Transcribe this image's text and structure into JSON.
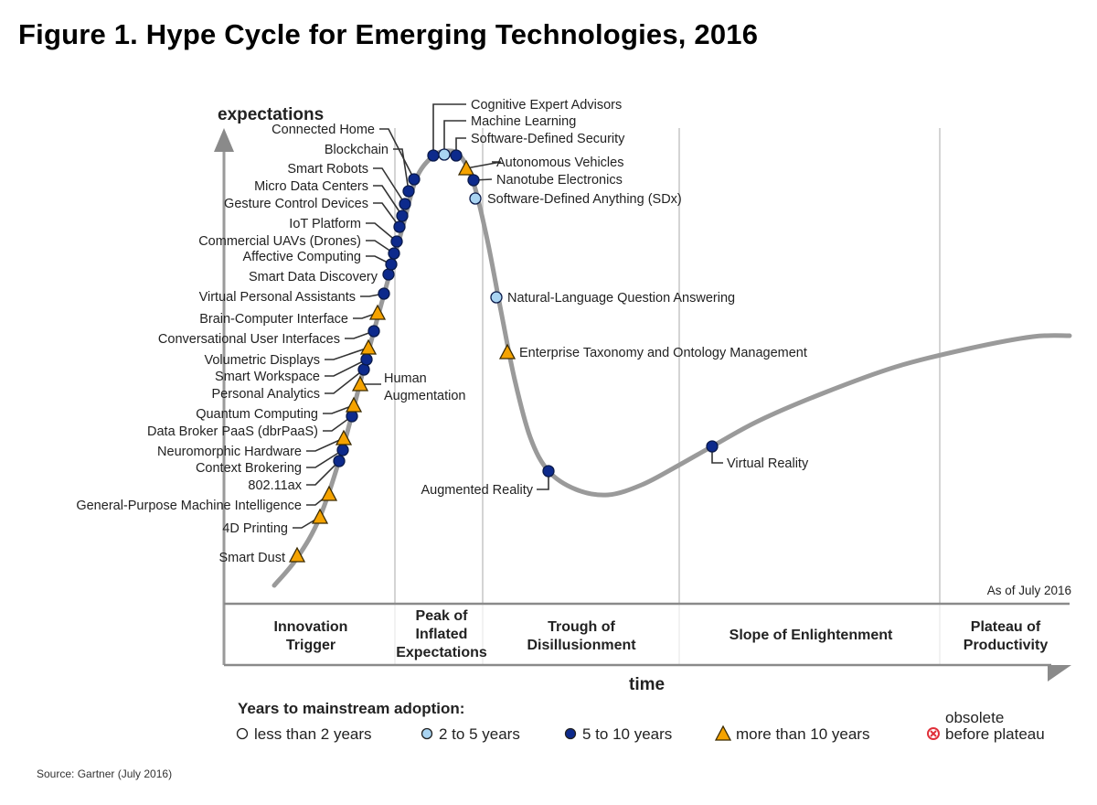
{
  "title": "Figure 1. Hype Cycle for Emerging Technologies, 2016",
  "source": "Source: Gartner (July 2016)",
  "colors": {
    "curve": "#9a9a9a",
    "less_than_2": "#ffffff",
    "two_to_five": "#a9d4f2",
    "five_to_ten": "#0d2a8c",
    "more_than_10": "#f5a300",
    "obsolete": "#e0303a"
  },
  "chart_data": {
    "type": "hype-cycle",
    "y_axis_label": "expectations",
    "x_axis_label": "time",
    "as_of": "As of July 2016",
    "phases": [
      {
        "lines": [
          "Innovation",
          "Trigger"
        ]
      },
      {
        "lines": [
          "Peak of",
          "Inflated",
          "Expectations"
        ]
      },
      {
        "lines": [
          "Trough of",
          "Disillusionment"
        ]
      },
      {
        "lines": [
          "Slope of Enlightenment"
        ]
      },
      {
        "lines": [
          "Plateau of",
          "Productivity"
        ]
      }
    ],
    "technologies": [
      {
        "name": "Smart Dust",
        "adoption": "more_than_10",
        "phase": "Innovation Trigger"
      },
      {
        "name": "4D Printing",
        "adoption": "more_than_10",
        "phase": "Innovation Trigger"
      },
      {
        "name": "General-Purpose Machine Intelligence",
        "adoption": "more_than_10",
        "phase": "Innovation Trigger"
      },
      {
        "name": "802.11ax",
        "adoption": "five_to_ten",
        "phase": "Innovation Trigger"
      },
      {
        "name": "Context Brokering",
        "adoption": "five_to_ten",
        "phase": "Innovation Trigger"
      },
      {
        "name": "Neuromorphic Hardware",
        "adoption": "more_than_10",
        "phase": "Innovation Trigger"
      },
      {
        "name": "Data Broker PaaS (dbrPaaS)",
        "adoption": "five_to_ten",
        "phase": "Innovation Trigger"
      },
      {
        "name": "Quantum Computing",
        "adoption": "more_than_10",
        "phase": "Innovation Trigger"
      },
      {
        "name": "Human Augmentation",
        "adoption": "more_than_10",
        "phase": "Innovation Trigger"
      },
      {
        "name": "Personal Analytics",
        "adoption": "five_to_ten",
        "phase": "Innovation Trigger"
      },
      {
        "name": "Smart Workspace",
        "adoption": "five_to_ten",
        "phase": "Innovation Trigger"
      },
      {
        "name": "Volumetric Displays",
        "adoption": "more_than_10",
        "phase": "Innovation Trigger"
      },
      {
        "name": "Conversational User Interfaces",
        "adoption": "five_to_ten",
        "phase": "Innovation Trigger"
      },
      {
        "name": "Brain-Computer Interface",
        "adoption": "more_than_10",
        "phase": "Innovation Trigger"
      },
      {
        "name": "Virtual Personal Assistants",
        "adoption": "five_to_ten",
        "phase": "Innovation Trigger"
      },
      {
        "name": "Smart Data Discovery",
        "adoption": "five_to_ten",
        "phase": "Innovation Trigger"
      },
      {
        "name": "Affective Computing",
        "adoption": "five_to_ten",
        "phase": "Innovation Trigger"
      },
      {
        "name": "Commercial UAVs (Drones)",
        "adoption": "five_to_ten",
        "phase": "Innovation Trigger"
      },
      {
        "name": "IoT Platform",
        "adoption": "five_to_ten",
        "phase": "Innovation Trigger"
      },
      {
        "name": "Gesture Control Devices",
        "adoption": "five_to_ten",
        "phase": "Innovation Trigger"
      },
      {
        "name": "Micro Data Centers",
        "adoption": "five_to_ten",
        "phase": "Innovation Trigger"
      },
      {
        "name": "Smart Robots",
        "adoption": "five_to_ten",
        "phase": "Innovation Trigger"
      },
      {
        "name": "Blockchain",
        "adoption": "five_to_ten",
        "phase": "Peak of Inflated Expectations"
      },
      {
        "name": "Connected Home",
        "adoption": "five_to_ten",
        "phase": "Peak of Inflated Expectations"
      },
      {
        "name": "Cognitive Expert Advisors",
        "adoption": "five_to_ten",
        "phase": "Peak of Inflated Expectations"
      },
      {
        "name": "Machine Learning",
        "adoption": "two_to_five",
        "phase": "Peak of Inflated Expectations"
      },
      {
        "name": "Software-Defined Security",
        "adoption": "five_to_ten",
        "phase": "Peak of Inflated Expectations"
      },
      {
        "name": "Autonomous Vehicles",
        "adoption": "more_than_10",
        "phase": "Peak of Inflated Expectations"
      },
      {
        "name": "Nanotube Electronics",
        "adoption": "five_to_ten",
        "phase": "Peak of Inflated Expectations"
      },
      {
        "name": "Software-Defined Anything (SDx)",
        "adoption": "two_to_five",
        "phase": "Trough of Disillusionment"
      },
      {
        "name": "Natural-Language Question Answering",
        "adoption": "two_to_five",
        "phase": "Trough of Disillusionment"
      },
      {
        "name": "Enterprise Taxonomy and Ontology Management",
        "adoption": "more_than_10",
        "phase": "Trough of Disillusionment"
      },
      {
        "name": "Augmented Reality",
        "adoption": "five_to_ten",
        "phase": "Trough of Disillusionment"
      },
      {
        "name": "Virtual Reality",
        "adoption": "five_to_ten",
        "phase": "Slope of Enlightenment"
      }
    ],
    "legend": {
      "title": "Years to mainstream adoption:",
      "items": [
        {
          "key": "less_than_2",
          "label": "less than 2 years",
          "shape": "circle"
        },
        {
          "key": "two_to_five",
          "label": "2 to 5 years",
          "shape": "circle"
        },
        {
          "key": "five_to_ten",
          "label": "5 to 10 years",
          "shape": "circle"
        },
        {
          "key": "more_than_10",
          "label": "more than 10 years",
          "shape": "triangle"
        },
        {
          "key": "obsolete",
          "label": "before plateau",
          "label_top": "obsolete",
          "shape": "x-circle"
        }
      ]
    }
  }
}
